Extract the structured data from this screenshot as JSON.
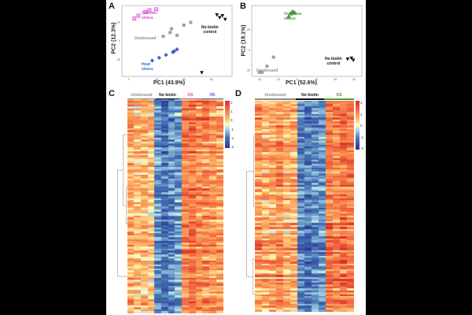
{
  "colors": {
    "osmotic": "#d04fc8",
    "oxidative": "#4c9a3a",
    "heat": "#3f67d6",
    "unstressed": "#8a8a8a",
    "nobiotin": "#111111",
    "hm_red": "#d73027",
    "hm_orange": "#fc8d59",
    "hm_white": "#f7f7f7",
    "hm_blue": "#4575b4"
  },
  "panelA": {
    "letter": "A",
    "xlabel": "PC1 (43.9%)",
    "ylabel": "PC2 (12.3%)",
    "labels": {
      "osmotic": "Osmotic\nstress",
      "unstressed": "Unstressed",
      "heat": "Heat\nstress",
      "nobiotin": "No biotin\ncontrol"
    },
    "xticks": [
      "0",
      "20",
      "40",
      "60"
    ],
    "yticks": [
      "20",
      "0",
      "-20"
    ],
    "points": [
      {
        "group": "osmotic",
        "x": 4,
        "y": 24
      },
      {
        "group": "osmotic",
        "x": 7,
        "y": 27
      },
      {
        "group": "osmotic",
        "x": 12,
        "y": 31
      },
      {
        "group": "osmotic",
        "x": 15,
        "y": 33
      },
      {
        "group": "osmotic",
        "x": 20,
        "y": 34
      },
      {
        "group": "unstressed",
        "x": 25,
        "y": 5
      },
      {
        "group": "unstressed",
        "x": 30,
        "y": 9
      },
      {
        "group": "unstressed",
        "x": 31,
        "y": 13
      },
      {
        "group": "unstressed",
        "x": 35,
        "y": 6
      },
      {
        "group": "unstressed",
        "x": 40,
        "y": 17
      },
      {
        "group": "unstressed",
        "x": 45,
        "y": 20
      },
      {
        "group": "heat",
        "x": 17,
        "y": -21
      },
      {
        "group": "heat",
        "x": 22,
        "y": -18
      },
      {
        "group": "heat",
        "x": 27,
        "y": -15
      },
      {
        "group": "heat",
        "x": 32,
        "y": -12
      },
      {
        "group": "heat",
        "x": 35,
        "y": -9
      },
      {
        "group": "heat",
        "x": 33,
        "y": -11
      },
      {
        "group": "nobiotin",
        "x": 64,
        "y": 28
      },
      {
        "group": "nobiotin",
        "x": 66,
        "y": 25
      },
      {
        "group": "nobiotin",
        "x": 68,
        "y": 27
      },
      {
        "group": "nobiotin",
        "x": 70,
        "y": 23
      },
      {
        "group": "nobiotin",
        "x": 53,
        "y": -34
      }
    ]
  },
  "panelB": {
    "letter": "B",
    "xlabel": "PC1 (52.6%)",
    "ylabel": "PC2 (19.1%)",
    "labels": {
      "oxidative": "Oxidative\nstress",
      "unstressed": "Unstressed",
      "nobiotin": "No biotin\ncontrol"
    },
    "xticks": [
      "-40",
      "-20",
      "0",
      "20",
      "40",
      "60"
    ],
    "yticks": [
      "20",
      "0",
      "-20"
    ],
    "points": [
      {
        "group": "oxidative",
        "x": -7,
        "y": 36
      },
      {
        "group": "oxidative",
        "x": -5,
        "y": 38
      },
      {
        "group": "oxidative",
        "x": -3,
        "y": 37
      },
      {
        "group": "oxidative",
        "x": -9,
        "y": 33
      },
      {
        "group": "unstressed",
        "x": -40,
        "y": -22
      },
      {
        "group": "unstressed",
        "x": -37,
        "y": -22
      },
      {
        "group": "unstressed",
        "x": -32,
        "y": -16
      },
      {
        "group": "unstressed",
        "x": -25,
        "y": -7
      },
      {
        "group": "nobiotin",
        "x": 53,
        "y": -9
      },
      {
        "group": "nobiotin",
        "x": 57,
        "y": -8
      },
      {
        "group": "nobiotin",
        "x": 59,
        "y": -10
      }
    ]
  },
  "panelC": {
    "letter": "C",
    "groups": [
      {
        "key": "unstressed",
        "label": "Unstressed"
      },
      {
        "key": "nobiotin",
        "label": "No biotin"
      },
      {
        "key": "osmotic",
        "label": "OS"
      },
      {
        "key": "heat",
        "label": "HS"
      }
    ],
    "colorbar_ticks": [
      "2",
      "1",
      "0",
      "-1",
      "-2",
      "-3"
    ]
  },
  "panelD": {
    "letter": "D",
    "groups": [
      {
        "key": "unstressed",
        "label": "Unstressed"
      },
      {
        "key": "nobiotin",
        "label": "No biotin"
      },
      {
        "key": "oxidative",
        "label": "OS"
      }
    ],
    "colorbar_ticks": [
      "2",
      "1",
      "0",
      "-1",
      "-2"
    ]
  }
}
